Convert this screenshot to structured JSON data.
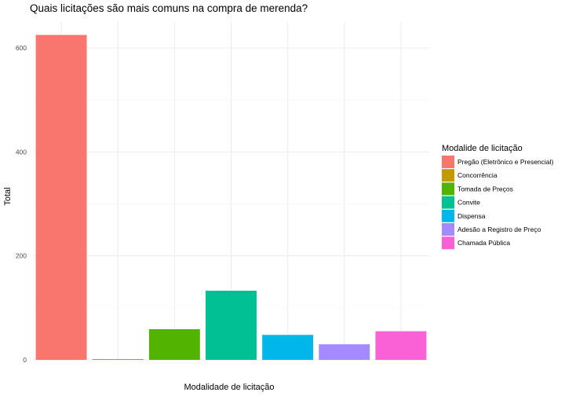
{
  "chart_data": {
    "type": "bar",
    "title": "Quais licitações são mais comuns na compra de merenda?",
    "xlabel": "Modalidade de licitação",
    "ylabel": "Total",
    "ylim": [
      0,
      650
    ],
    "yticks": [
      0,
      200,
      400,
      600
    ],
    "grid": true,
    "legend": {
      "title": "Modalide de licitação",
      "position": "right"
    },
    "categories": [
      "Pregão (Eletrônico e Presencial)",
      "Concorrência",
      "Tomada de Preços",
      "Convite",
      "Dispensa",
      "Adesão a Registro de Preço",
      "Chamada Pública"
    ],
    "values": [
      625,
      1,
      59,
      133,
      48,
      30,
      55
    ],
    "colors": [
      "#F8766D",
      "#C49A00",
      "#53B400",
      "#00C094",
      "#00B6EB",
      "#A58AFF",
      "#FB61D7"
    ]
  }
}
